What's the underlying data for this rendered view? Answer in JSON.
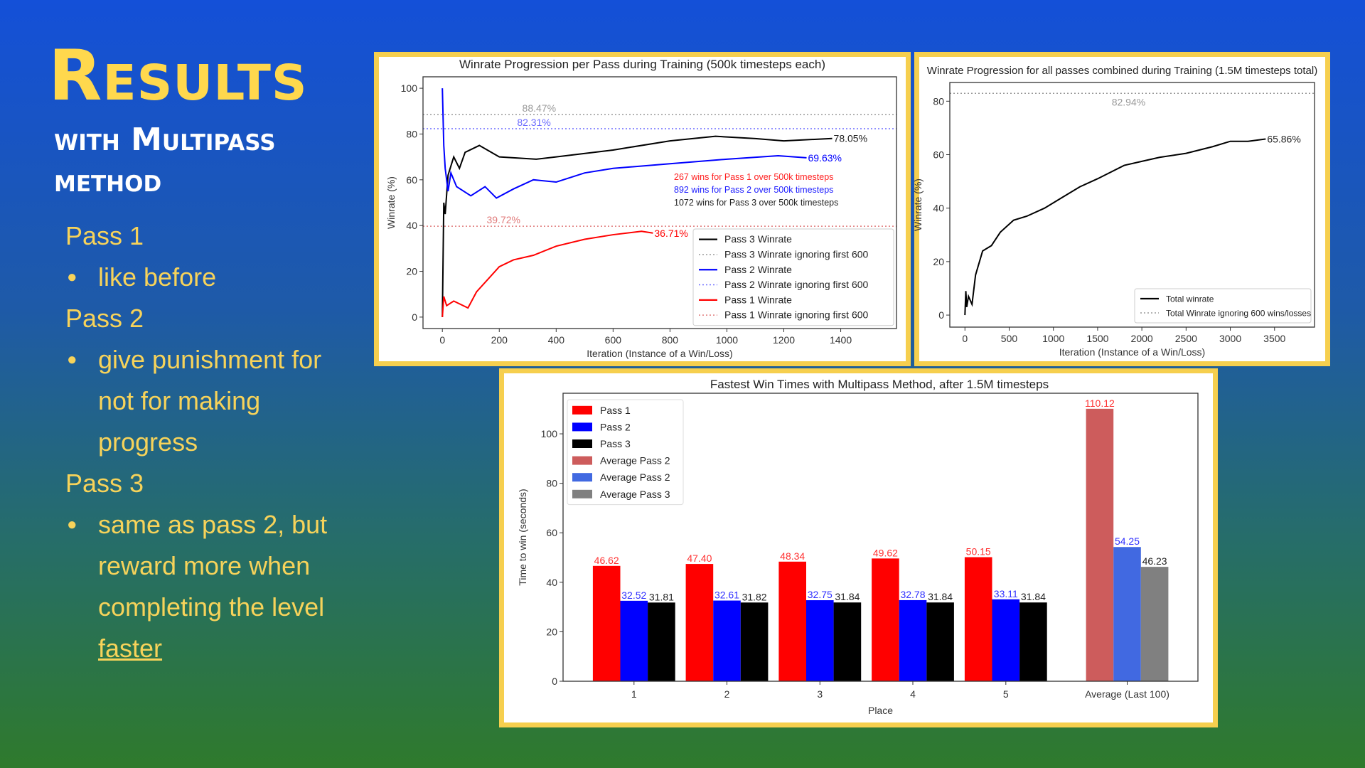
{
  "slide": {
    "title": "Results",
    "subtitle": "with Multipass method",
    "pass1": "Pass 1",
    "pass1_bullet": "like before",
    "pass2": "Pass 2",
    "pass2_bullet": "give punishment for not for making progress",
    "pass3": "Pass 3",
    "pass3_bullet": "same as pass 2, but reward more when completing the level",
    "pass3_link": "faster",
    "bullet_glyph": "●"
  },
  "colors": {
    "accent_yellow": "#ffd84d",
    "panel_border": "#f6cf4e"
  },
  "chart_data": [
    {
      "type": "line",
      "title": "Winrate Progression per Pass during Training (500k timesteps each)",
      "xlabel": "Iteration (Instance of a Win/Loss)",
      "ylabel": "Winrate (%)",
      "xlim": [
        -68,
        1596
      ],
      "ylim": [
        -5,
        105
      ],
      "xticks": [
        "0",
        "200",
        "400",
        "600",
        "800",
        "1000",
        "1200",
        "1400"
      ],
      "yticks": [
        "0",
        "20",
        "40",
        "60",
        "80",
        "100"
      ],
      "grid": false,
      "legend": "lower-right",
      "series": [
        {
          "name": "Pass 3 Winrate",
          "color": "#000000",
          "end_label": "78.05%",
          "points": [
            [
              0,
              0
            ],
            [
              5,
              50
            ],
            [
              10,
              45
            ],
            [
              20,
              62
            ],
            [
              40,
              70
            ],
            [
              60,
              65
            ],
            [
              80,
              72
            ],
            [
              130,
              75
            ],
            [
              200,
              70
            ],
            [
              330,
              69
            ],
            [
              400,
              70
            ],
            [
              600,
              73
            ],
            [
              800,
              77
            ],
            [
              960,
              79
            ],
            [
              1100,
              78
            ],
            [
              1200,
              77
            ],
            [
              1370,
              78.05
            ]
          ]
        },
        {
          "name": "Pass 2 Winrate",
          "color": "#0000ff",
          "end_label": "69.63%",
          "points": [
            [
              0,
              100
            ],
            [
              5,
              75
            ],
            [
              10,
              65
            ],
            [
              20,
              55
            ],
            [
              30,
              63
            ],
            [
              50,
              57
            ],
            [
              100,
              53
            ],
            [
              150,
              57
            ],
            [
              190,
              52
            ],
            [
              250,
              56
            ],
            [
              320,
              60
            ],
            [
              400,
              59
            ],
            [
              500,
              63
            ],
            [
              600,
              65
            ],
            [
              800,
              67
            ],
            [
              1000,
              69
            ],
            [
              1180,
              70.5
            ],
            [
              1280,
              69.63
            ]
          ]
        },
        {
          "name": "Pass 1 Winrate",
          "color": "#ff0000",
          "end_label": "36.71%",
          "points": [
            [
              0,
              0
            ],
            [
              5,
              9
            ],
            [
              15,
              5
            ],
            [
              40,
              7
            ],
            [
              90,
              4
            ],
            [
              120,
              11
            ],
            [
              200,
              22
            ],
            [
              250,
              25
            ],
            [
              320,
              27
            ],
            [
              400,
              31
            ],
            [
              500,
              34
            ],
            [
              600,
              36
            ],
            [
              700,
              37.5
            ],
            [
              740,
              36.71
            ]
          ]
        }
      ],
      "reference_lines": [
        {
          "name": "Pass 3 Winrate ignoring first 600",
          "y": 88.47,
          "label": "88.47%",
          "color": "#999999"
        },
        {
          "name": "Pass 2 Winrate ignoring first 600",
          "y": 82.31,
          "label": "82.31%",
          "color": "#6b6bff"
        },
        {
          "name": "Pass 1 Winrate ignoring first 600",
          "y": 39.72,
          "label": "39.72%",
          "color": "#e07a7a"
        }
      ],
      "annotations": [
        {
          "text": "267 wins for Pass 1 over 500k timesteps",
          "color": "#ff2020"
        },
        {
          "text": "892 wins for Pass 2 over 500k timesteps",
          "color": "#2020ff"
        },
        {
          "text": "1072 wins for Pass 3 over 500k timesteps",
          "color": "#222222"
        }
      ],
      "legend_order": [
        "Pass 3 Winrate",
        "Pass 3 Winrate ignoring first 600",
        "Pass 2 Winrate",
        "Pass 2 Winrate ignoring first 600",
        "Pass 1 Winrate",
        "Pass 1 Winrate ignoring first 600"
      ]
    },
    {
      "type": "line",
      "title": "Winrate Progression for all passes combined during Training (1.5M timesteps total)",
      "xlabel": "Iteration (Instance of a Win/Loss)",
      "ylabel": "Winrate (%)",
      "xlim": [
        -171,
        3952
      ],
      "ylim": [
        -4.5,
        87
      ],
      "xticks": [
        "0",
        "500",
        "1000",
        "1500",
        "2000",
        "2500",
        "3000",
        "3500"
      ],
      "yticks": [
        "0",
        "20",
        "40",
        "60",
        "80"
      ],
      "grid": false,
      "legend": "lower-right",
      "series": [
        {
          "name": "Total winrate",
          "color": "#000000",
          "end_label": "65.86%",
          "points": [
            [
              0,
              0
            ],
            [
              10,
              9
            ],
            [
              20,
              3
            ],
            [
              40,
              7
            ],
            [
              80,
              4
            ],
            [
              120,
              15
            ],
            [
              200,
              24
            ],
            [
              300,
              26
            ],
            [
              400,
              31
            ],
            [
              550,
              35.5
            ],
            [
              700,
              37
            ],
            [
              900,
              40
            ],
            [
              1100,
              44
            ],
            [
              1300,
              48
            ],
            [
              1500,
              51
            ],
            [
              1800,
              56
            ],
            [
              2000,
              57.5
            ],
            [
              2200,
              59
            ],
            [
              2500,
              60.5
            ],
            [
              2800,
              63
            ],
            [
              3000,
              65
            ],
            [
              3200,
              65
            ],
            [
              3400,
              65.86
            ]
          ]
        }
      ],
      "reference_lines": [
        {
          "name": "Total Winrate ignoring 600 wins/losses",
          "y": 82.94,
          "label": "82.94%",
          "color": "#999999"
        }
      ],
      "legend_order": [
        "Total winrate",
        "Total Winrate ignoring 600 wins/losses"
      ]
    },
    {
      "type": "bar",
      "title": "Fastest Win Times with Multipass Method, after 1.5M timesteps",
      "xlabel": "Place",
      "ylabel": "Time to win (seconds)",
      "ylim": [
        0,
        116.4
      ],
      "yticks": [
        "0",
        "20",
        "40",
        "60",
        "80",
        "100"
      ],
      "categories": [
        "1",
        "2",
        "3",
        "4",
        "5",
        "Average (Last 100)"
      ],
      "grid": false,
      "legend": "upper-left",
      "series": [
        {
          "name": "Pass 1",
          "color": "#ff0000",
          "label_color": "#ff3030",
          "values": [
            46.62,
            47.4,
            48.34,
            49.62,
            50.15,
            null
          ]
        },
        {
          "name": "Pass 2",
          "color": "#0000ff",
          "label_color": "#3030ff",
          "values": [
            32.52,
            32.61,
            32.75,
            32.78,
            33.11,
            null
          ]
        },
        {
          "name": "Pass 3",
          "color": "#000000",
          "label_color": "#222222",
          "values": [
            31.81,
            31.82,
            31.84,
            31.84,
            31.84,
            null
          ]
        },
        {
          "name": "Average Pass 2",
          "color": "#cd5c5c",
          "label_color": "#ff3030",
          "values": [
            null,
            null,
            null,
            null,
            null,
            110.12
          ]
        },
        {
          "name": "Average Pass 2",
          "color": "#4169e1",
          "label_color": "#3030ff",
          "values": [
            null,
            null,
            null,
            null,
            null,
            54.25
          ]
        },
        {
          "name": "Average Pass 3",
          "color": "#808080",
          "label_color": "#222222",
          "values": [
            null,
            null,
            null,
            null,
            null,
            46.23
          ]
        }
      ]
    }
  ]
}
